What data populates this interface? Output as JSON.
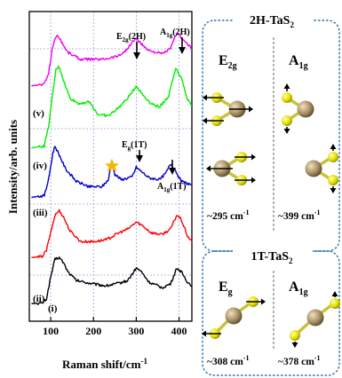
{
  "chart_data": {
    "type": "line",
    "xlabel": "Raman shift/cm",
    "xlabel_sup": "-1",
    "ylabel": "Intensity/arb. units",
    "xlim": [
      50,
      430
    ],
    "x_ticks": [
      100,
      200,
      300,
      400
    ],
    "grid": true,
    "series": [
      {
        "name": "(i)",
        "color": "#000000",
        "offset": 0.0,
        "points": [
          [
            55,
            0
          ],
          [
            80,
            0.3
          ],
          [
            90,
            5
          ],
          [
            100,
            30
          ],
          [
            110,
            50
          ],
          [
            120,
            52
          ],
          [
            130,
            46
          ],
          [
            140,
            36
          ],
          [
            160,
            26
          ],
          [
            200,
            22
          ],
          [
            230,
            20
          ],
          [
            260,
            23
          ],
          [
            280,
            26
          ],
          [
            300,
            40
          ],
          [
            310,
            37
          ],
          [
            330,
            24
          ],
          [
            360,
            18
          ],
          [
            380,
            22
          ],
          [
            395,
            40
          ],
          [
            405,
            36
          ],
          [
            420,
            24
          ],
          [
            430,
            20
          ]
        ]
      },
      {
        "name": "(ii)",
        "color": "#ff0000",
        "offset": 0.0,
        "points": [
          [
            55,
            52
          ],
          [
            80,
            53
          ],
          [
            90,
            60
          ],
          [
            100,
            80
          ],
          [
            110,
            100
          ],
          [
            120,
            105
          ],
          [
            130,
            98
          ],
          [
            145,
            82
          ],
          [
            170,
            70
          ],
          [
            200,
            70
          ],
          [
            230,
            72
          ],
          [
            260,
            80
          ],
          [
            280,
            84
          ],
          [
            300,
            92
          ],
          [
            315,
            88
          ],
          [
            335,
            80
          ],
          [
            360,
            78
          ],
          [
            380,
            84
          ],
          [
            395,
            100
          ],
          [
            405,
            95
          ],
          [
            420,
            76
          ],
          [
            430,
            70
          ]
        ]
      },
      {
        "name": "(iv)",
        "color": "#0000cc",
        "offset": 0.0,
        "points": [
          [
            55,
            120
          ],
          [
            85,
            122
          ],
          [
            95,
            140
          ],
          [
            105,
            170
          ],
          [
            110,
            178
          ],
          [
            120,
            168
          ],
          [
            135,
            152
          ],
          [
            160,
            138
          ],
          [
            190,
            132
          ],
          [
            220,
            132
          ],
          [
            235,
            140
          ],
          [
            243,
            162
          ],
          [
            250,
            146
          ],
          [
            265,
            140
          ],
          [
            290,
            143
          ],
          [
            300,
            154
          ],
          [
            310,
            150
          ],
          [
            330,
            142
          ],
          [
            355,
            140
          ],
          [
            370,
            148
          ],
          [
            380,
            158
          ],
          [
            390,
            152
          ],
          [
            405,
            138
          ],
          [
            430,
            134
          ]
        ]
      },
      {
        "name": "(v)",
        "color": "#00ee00",
        "offset": 0.0,
        "points": [
          [
            55,
            176
          ],
          [
            85,
            178
          ],
          [
            95,
            200
          ],
          [
            105,
            238
          ],
          [
            112,
            264
          ],
          [
            120,
            268
          ],
          [
            130,
            252
          ],
          [
            145,
            232
          ],
          [
            165,
            226
          ],
          [
            190,
            228
          ],
          [
            210,
            214
          ],
          [
            235,
            212
          ],
          [
            260,
            222
          ],
          [
            280,
            232
          ],
          [
            300,
            246
          ],
          [
            315,
            236
          ],
          [
            335,
            226
          ],
          [
            355,
            222
          ],
          [
            375,
            234
          ],
          [
            392,
            266
          ],
          [
            405,
            255
          ],
          [
            420,
            230
          ],
          [
            430,
            224
          ]
        ]
      },
      {
        "name": "",
        "color": "#ee00ee",
        "offset": 0.0,
        "points": [
          [
            55,
            246
          ],
          [
            85,
            248
          ],
          [
            95,
            260
          ],
          [
            105,
            292
          ],
          [
            115,
            304
          ],
          [
            125,
            296
          ],
          [
            140,
            284
          ],
          [
            170,
            276
          ],
          [
            220,
            276
          ],
          [
            260,
            280
          ],
          [
            280,
            288
          ],
          [
            298,
            300
          ],
          [
            310,
            294
          ],
          [
            330,
            286
          ],
          [
            360,
            282
          ],
          [
            380,
            288
          ],
          [
            395,
            306
          ],
          [
            410,
            298
          ],
          [
            430,
            288
          ]
        ]
      }
    ],
    "series_labels": [
      "(i)",
      "(ii)",
      "(iii)",
      "(iv)",
      "(v)"
    ],
    "annotations": {
      "e2g_2h": "E2g(2H)",
      "a1g_2h": "A1g(2H)",
      "eg_1t": "Eg(1T)",
      "a1g_1t": "A1g(1T)"
    }
  },
  "panels": {
    "top": {
      "title_main": "2H-TaS",
      "title_sub": "2",
      "left_mode_main": "E",
      "left_mode_sub": "2g",
      "right_mode_main": "A",
      "right_mode_sub": "1g",
      "left_freq": "~295 cm",
      "right_freq": "~399 cm",
      "freq_sup": "-1"
    },
    "bottom": {
      "title_main": "1T-TaS",
      "title_sub": "2",
      "left_mode_main": "E",
      "left_mode_sub": "g",
      "right_mode_main": "A",
      "right_mode_sub": "1g",
      "left_freq": "~308 cm",
      "right_freq": "~378 cm",
      "freq_sup": "-1"
    }
  },
  "colors": {
    "panel_border": "#2e6fa8",
    "atom_s": "#e5e000",
    "atom_ta": "#a88f62",
    "bond": "#c9c23a",
    "star": "#f5b800"
  }
}
